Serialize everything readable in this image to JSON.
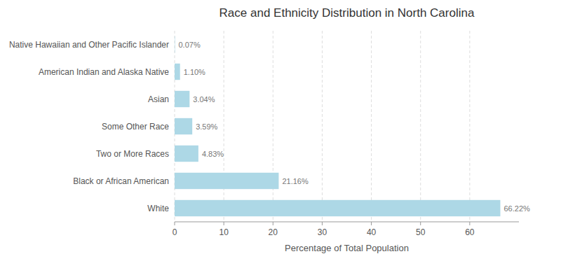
{
  "chart_data": {
    "type": "bar",
    "orientation": "horizontal",
    "title": "Race and Ethnicity Distribution in North Carolina",
    "xlabel": "Percentage of Total Population",
    "categories": [
      "White",
      "Black or African American",
      "Two or More Races",
      "Some Other Race",
      "Asian",
      "American Indian and Alaska Native",
      "Native Hawaiian and Other Pacific Islander"
    ],
    "values": [
      66.22,
      21.16,
      4.83,
      3.59,
      3.04,
      1.1,
      0.07
    ],
    "value_labels": [
      "66.22%",
      "21.16%",
      "4.83%",
      "3.59%",
      "3.04%",
      "1.10%",
      "0.07%"
    ],
    "data_labels": true,
    "color": "#ADD8E6",
    "xlim": [
      0,
      70
    ],
    "xticks": [
      0,
      10,
      20,
      30,
      40,
      50,
      60
    ],
    "grid": true
  }
}
